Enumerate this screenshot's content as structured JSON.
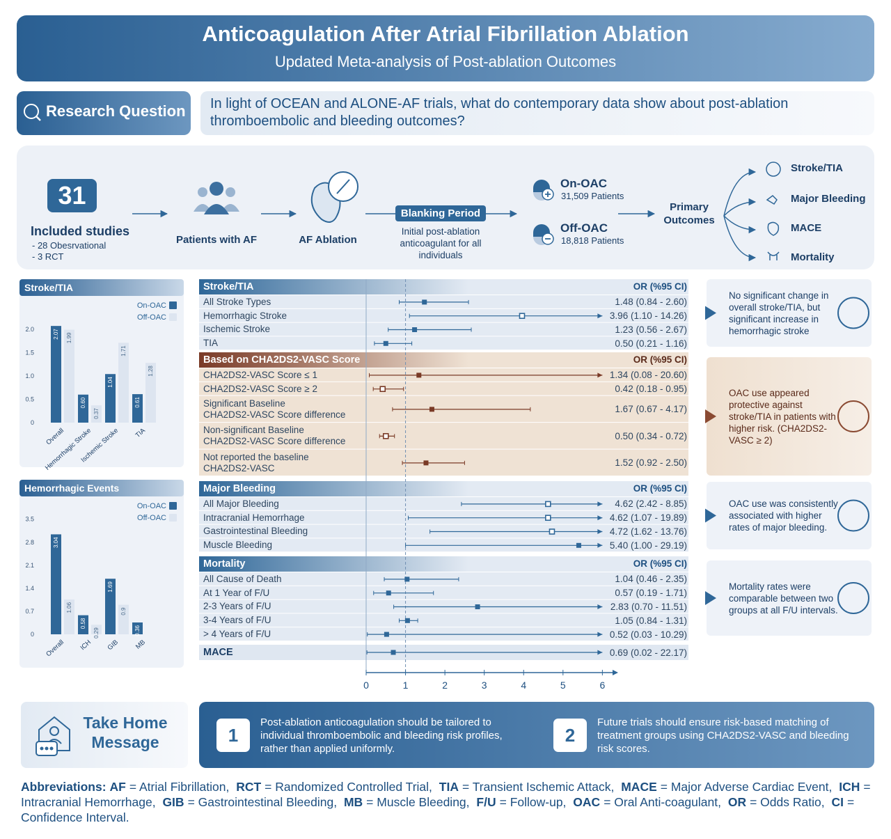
{
  "header": {
    "title": "Anticoagulation After Atrial Fibrillation Ablation",
    "subtitle": "Updated Meta-analysis of Post-ablation Outcomes"
  },
  "research_question": {
    "label": "Research Question",
    "text": "In light of OCEAN and ALONE-AF trials, what do contemporary data show about post-ablation thromboembolic and bleeding outcomes?"
  },
  "flow": {
    "studies_count": 31,
    "studies_label": "Included studies",
    "study_types": [
      "- 28 Obesrvational",
      "- 3 RCT"
    ],
    "steps": [
      "Patients with AF",
      "AF Ablation"
    ],
    "blanking_title": "Blanking Period",
    "blanking_text": "Initial post-ablation anticoagulant for all individuals",
    "groups": [
      {
        "name": "On-OAC",
        "patients": "31,509 Patients"
      },
      {
        "name": "Off-OAC",
        "patients": "18,818 Patients"
      }
    ],
    "primary_label": "Primary Outcomes",
    "outcomes": [
      "Stroke/TIA",
      "Major Bleeding",
      "MACE",
      "Mortality"
    ]
  },
  "chart_data": [
    {
      "type": "bar",
      "title": "Stroke/TIA",
      "categories": [
        "Overall",
        "Hemorrhagic Stroke",
        "Ischemic Stroke",
        "TIA"
      ],
      "series": [
        {
          "name": "On-OAC",
          "color": "#2f6798",
          "values": [
            2.07,
            0.6,
            1.04,
            0.61
          ],
          "value_labels": [
            "2.07",
            "0.60",
            "1.04",
            "0.61"
          ]
        },
        {
          "name": "Off-OAC",
          "color": "#dde5f0",
          "values": [
            1.99,
            0.37,
            1.71,
            1.28
          ]
        }
      ],
      "ylim": [
        0,
        2.4
      ],
      "yticks": [
        0,
        0.5,
        {
          "value": 1,
          "label": "1.0"
        },
        1.5,
        {
          "value": 2,
          "label": "2.0"
        }
      ],
      "grid": false
    },
    {
      "type": "bar",
      "title": "Hemorrhagic Events",
      "categories": [
        "Overall",
        "ICH",
        "GIB",
        "MB"
      ],
      "series": [
        {
          "name": "On-OAC",
          "color": "#2f6798",
          "values": [
            3.04,
            0.58,
            1.69,
            0.36
          ]
        },
        {
          "name": "Off-OAC",
          "color": "#dde5f0",
          "values": [
            1.06,
            0.29,
            0.9,
            null
          ]
        }
      ],
      "ylim": [
        0,
        3.6
      ],
      "yticks": [
        0,
        0.7,
        1.4,
        2.1,
        2.8,
        3.5
      ],
      "grid": false
    },
    {
      "type": "forest",
      "header": "OR (%95 CI)",
      "xlim": [
        0,
        6.4
      ],
      "xticks": [
        0,
        1,
        2,
        3,
        4,
        5,
        6
      ],
      "reference_line": 1,
      "groups": [
        {
          "title": "Stroke/TIA",
          "color": "#2f6798",
          "background": "#e3eaf3",
          "categories": [
            "All Stroke Types",
            "Hemorrhagic Stroke",
            "Ischemic Stroke",
            "TIA"
          ],
          "values": [
            1.48,
            3.96,
            1.23,
            0.5
          ],
          "ci_low": [
            0.84,
            1.1,
            0.56,
            0.21
          ],
          "ci_high": [
            2.6,
            14.26,
            2.67,
            1.16
          ],
          "value_labels": [
            "1.48 (0.84 - 2.60)",
            "3.96 (1.10 - 14.26)",
            "1.23 (0.56 - 2.67)",
            "0.50 (0.21 - 1.16)"
          ],
          "markers": [
            "filled",
            "open",
            "filled",
            "filled"
          ]
        },
        {
          "title": "Based on CHA2DS2-VASC Score",
          "color": "#7a3a26",
          "background": "#efe2d4",
          "categories": [
            "CHA2DS2-VASC Score ≤ 1",
            "CHA2DS2-VASC Score ≥ 2",
            "Significant Baseline\nCHA2DS2-VASC Score difference",
            "Non-significant Baseline\nCHA2DS2-VASC Score difference",
            "Not reported the baseline\nCHA2DS2-VASC"
          ],
          "values": [
            1.34,
            0.42,
            1.67,
            0.5,
            1.52
          ],
          "ci_low": [
            0.08,
            0.18,
            0.67,
            0.34,
            0.92
          ],
          "ci_high": [
            20.6,
            0.95,
            4.17,
            0.72,
            2.5
          ],
          "value_labels": [
            "1.34 (0.08 - 20.60)",
            "0.42 (0.18 - 0.95)",
            "1.67 (0.67 - 4.17)",
            "0.50 (0.34 - 0.72)",
            "1.52 (0.92 - 2.50)"
          ],
          "markers": [
            "filled",
            "open",
            "filled",
            "open",
            "filled"
          ]
        },
        {
          "title": "Major Bleeding",
          "color": "#2f6798",
          "background": "#e3eaf3",
          "categories": [
            "All Major Bleeding",
            "Intracranial Hemorrhage",
            "Gastrointestinal Bleeding",
            "Muscle Bleeding"
          ],
          "values": [
            4.62,
            4.62,
            4.72,
            5.4
          ],
          "ci_low": [
            2.42,
            1.07,
            1.62,
            1.0
          ],
          "ci_high": [
            8.85,
            19.89,
            13.76,
            29.19
          ],
          "value_labels": [
            "4.62 (2.42 - 8.85)",
            "4.62 (1.07 - 19.89)",
            "4.72 (1.62 - 13.76)",
            "5.40 (1.00 - 29.19)"
          ],
          "markers": [
            "open",
            "open",
            "open",
            "filled"
          ]
        },
        {
          "title": "Mortality",
          "color": "#2f6798",
          "background": "#e3eaf3",
          "categories": [
            "All Cause of Death",
            "At 1 Year of F/U",
            "2-3 Years of F/U",
            "3-4 Years of F/U",
            "> 4 Years of F/U"
          ],
          "values": [
            1.04,
            0.57,
            2.83,
            1.05,
            0.52
          ],
          "ci_low": [
            0.46,
            0.19,
            0.7,
            0.84,
            0.03
          ],
          "ci_high": [
            2.35,
            1.71,
            11.51,
            1.31,
            10.29
          ],
          "value_labels": [
            "1.04 (0.46 - 2.35)",
            "0.57 (0.19 - 1.71)",
            "2.83 (0.70 - 11.51)",
            "1.05 (0.84 - 1.31)",
            "0.52 (0.03 - 10.29)"
          ],
          "markers": [
            "filled",
            "filled",
            "filled",
            "filled",
            "filled"
          ]
        },
        {
          "title": "MACE",
          "color": "#2f6798",
          "background": "#dfe7f1",
          "values": [
            0.69
          ],
          "ci_low": [
            0.02
          ],
          "ci_high": [
            22.17
          ],
          "value_labels": [
            "0.69 (0.02 - 22.17)"
          ],
          "markers": [
            "filled"
          ]
        }
      ]
    }
  ],
  "findings": [
    "No significant change in overall stroke/TIA, but significant increase in hemorrhagic stroke",
    "OAC use appeared protective against stroke/TIA in patients with higher risk. (CHA2DS2-VASC ≥ 2)",
    "OAC use was consistently associated with higher rates of major bleeding.",
    "Mortality rates were comparable between two groups at all F/U intervals."
  ],
  "take_home": {
    "title": "Take Home Message",
    "items": [
      {
        "number": 1,
        "text": "Post-ablation anticoagulation should be tailored to individual thromboembolic and bleeding risk profiles, rather than applied uniformly."
      },
      {
        "number": 2,
        "text": "Future trials should ensure risk-based matching of treatment groups using CHA2DS2-VASC and bleeding risk scores."
      }
    ]
  },
  "abbreviations": {
    "label": "Abbreviations:",
    "items": [
      {
        "term": "AF",
        "definition": "= Atrial Fibrillation,"
      },
      {
        "term": "RCT",
        "definition": "= Randomized Controlled Trial,"
      },
      {
        "term": "TIA",
        "definition": "= Transient Ischemic Attack,"
      },
      {
        "term": "MACE",
        "definition": "= Major Adverse Cardiac Event,"
      },
      {
        "term": "ICH",
        "definition": "= Intracranial Hemorrhage,"
      },
      {
        "term": "GIB",
        "definition": "= Gastrointestinal Bleeding,"
      },
      {
        "term": "MB",
        "definition": "= Muscle Bleeding,"
      },
      {
        "term": "F/U",
        "definition": "= Follow-up,"
      },
      {
        "term": "OAC",
        "definition": "= Oral Anti-coagulant,"
      },
      {
        "term": "OR",
        "definition": "= Odds Ratio,"
      },
      {
        "term": "CI",
        "definition": "= Confidence Interval."
      }
    ]
  }
}
